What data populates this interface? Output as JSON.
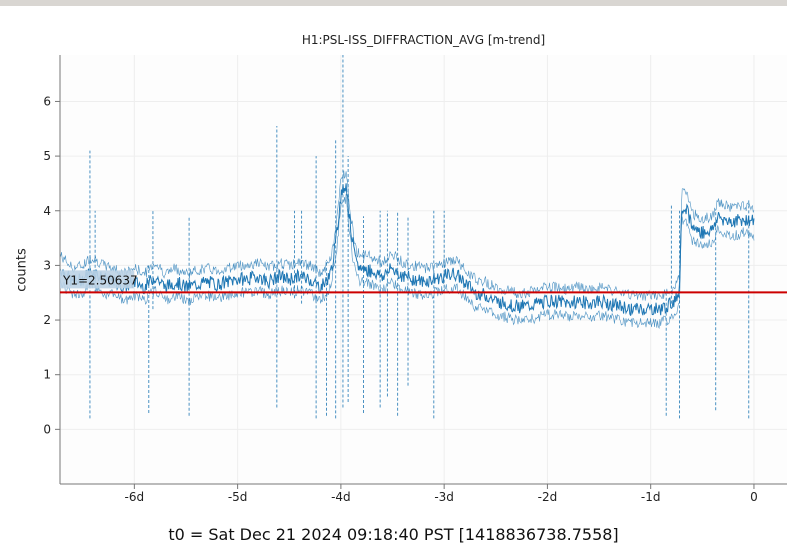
{
  "title": "H1:PSL-ISS_DIFFRACTION_AVG [m-trend]",
  "ylabel": "counts",
  "t0": "t0 = Sat Dec 21 2024 09:18:40 PST [1418836738.7558]",
  "colors": {
    "trace": "#1f77b4",
    "cursor": "#cc0000",
    "axis": "#777777",
    "grid": "#eeeeee"
  },
  "cursor": {
    "label": "Y1=2.50637",
    "value": 2.50637
  },
  "chart_data": {
    "type": "line",
    "title": "H1:PSL-ISS_DIFFRACTION_AVG [m-trend]",
    "xlabel": "",
    "ylabel": "counts",
    "xlim": [
      -6.72,
      0.32
    ],
    "ylim": [
      -1.0,
      6.85
    ],
    "x_ticks": [
      -6,
      -5,
      -4,
      -3,
      -2,
      -1,
      0
    ],
    "x_tick_labels": [
      "-6d",
      "-5d",
      "-4d",
      "-3d",
      "-2d",
      "-1d",
      "0"
    ],
    "y_ticks": [
      0,
      1,
      2,
      3,
      4,
      5,
      6
    ],
    "y_tick_labels": [
      "0",
      "1",
      "2",
      "3",
      "4",
      "5",
      "6"
    ],
    "grid": true,
    "series": [
      {
        "x": [
          -6.72,
          -6.6,
          -6.5,
          -6.45,
          -6.4,
          -6.3,
          -6.2,
          -6.1,
          -6.0,
          -5.9,
          -5.85,
          -5.8,
          -5.7,
          -5.6,
          -5.5,
          -5.4,
          -5.3,
          -5.2,
          -5.1,
          -5.0,
          -4.9,
          -4.8,
          -4.7,
          -4.6,
          -4.5,
          -4.4,
          -4.3,
          -4.2,
          -4.15,
          -4.1,
          -4.05,
          -4.0,
          -3.95,
          -3.9,
          -3.85,
          -3.8,
          -3.7,
          -3.6,
          -3.5,
          -3.4,
          -3.3,
          -3.2,
          -3.1,
          -3.0,
          -2.9,
          -2.8,
          -2.7,
          -2.6,
          -2.5,
          -2.4,
          -2.3,
          -2.2,
          -2.1,
          -2.0,
          -1.9,
          -1.8,
          -1.7,
          -1.6,
          -1.5,
          -1.4,
          -1.3,
          -1.2,
          -1.1,
          -1.0,
          -0.9,
          -0.8,
          -0.75,
          -0.72,
          -0.7,
          -0.65,
          -0.6,
          -0.5,
          -0.4,
          -0.35,
          -0.3,
          -0.2,
          -0.1,
          0.0
        ],
        "values": [
          2.95,
          2.7,
          2.75,
          2.85,
          2.9,
          2.75,
          2.7,
          2.6,
          2.7,
          2.6,
          2.7,
          2.8,
          2.6,
          2.7,
          2.6,
          2.65,
          2.7,
          2.65,
          2.7,
          2.75,
          2.75,
          2.8,
          2.7,
          2.8,
          2.75,
          2.8,
          2.75,
          2.6,
          2.7,
          2.85,
          3.4,
          4.3,
          4.5,
          3.6,
          3.0,
          2.95,
          2.9,
          2.8,
          2.95,
          2.8,
          2.75,
          2.7,
          2.75,
          2.8,
          2.85,
          2.7,
          2.5,
          2.45,
          2.35,
          2.3,
          2.25,
          2.25,
          2.3,
          2.35,
          2.35,
          2.3,
          2.35,
          2.3,
          2.35,
          2.3,
          2.25,
          2.2,
          2.2,
          2.2,
          2.2,
          2.3,
          2.4,
          2.6,
          4.1,
          4.05,
          3.7,
          3.6,
          3.65,
          3.9,
          3.85,
          3.8,
          3.85,
          3.8
        ]
      }
    ],
    "annotations": [
      "Y1=2.50637"
    ]
  }
}
